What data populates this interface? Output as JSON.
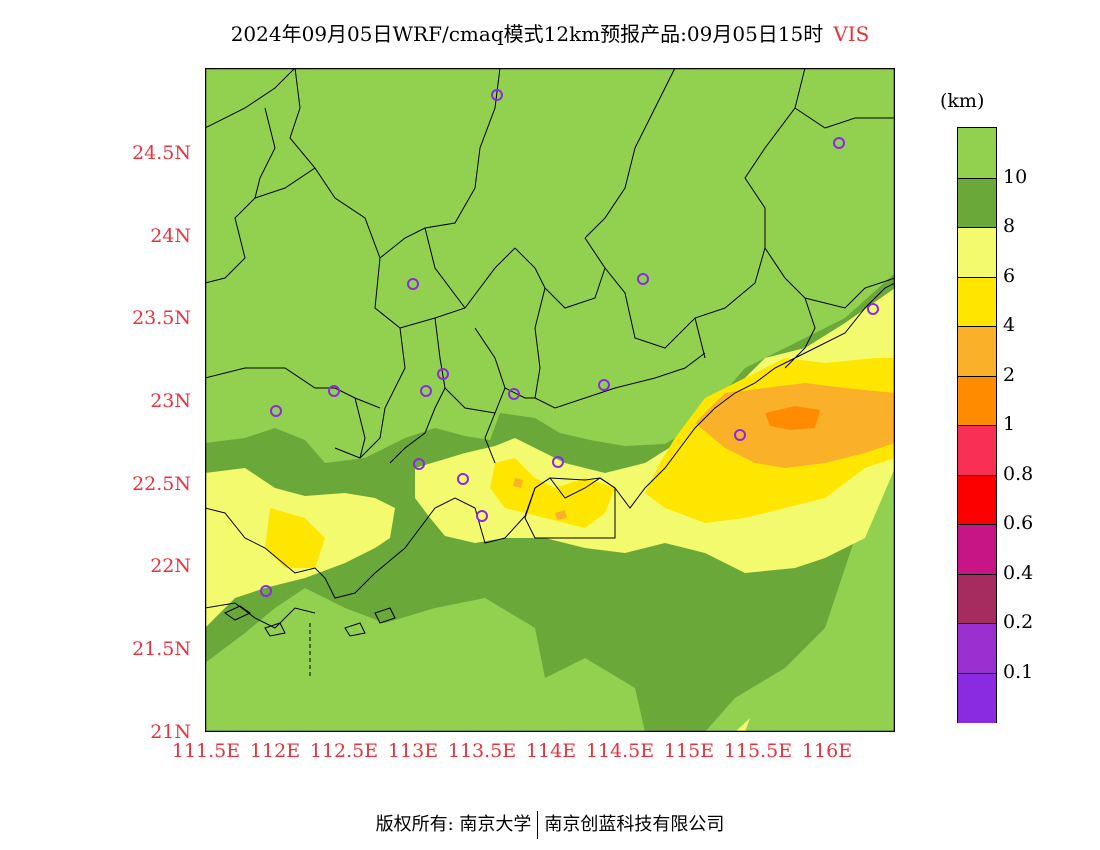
{
  "title": {
    "text": "2024年09月05日WRF/cmaq模式12km预报产品:09月05日15时",
    "variable": "VIS"
  },
  "legend": {
    "unit": "(km)",
    "levels": [
      {
        "label": "10",
        "color": "#92d050"
      },
      {
        "label": "8",
        "color": "#6aa83a"
      },
      {
        "label": "6",
        "color": "#f4fa6e"
      },
      {
        "label": "4",
        "color": "#ffe600"
      },
      {
        "label": "2",
        "color": "#fbb02a"
      },
      {
        "label": "1",
        "color": "#ff8c00"
      },
      {
        "label": "0.8",
        "color": "#fa2f55"
      },
      {
        "label": "0.6",
        "color": "#fc0000"
      },
      {
        "label": "0.4",
        "color": "#c71585"
      },
      {
        "label": "0.2",
        "color": "#a62b5e"
      },
      {
        "label": "0.1",
        "color": "#9b30d0"
      },
      {
        "label": "",
        "color": "#8a2be2"
      }
    ]
  },
  "axes": {
    "lat_labels": [
      "24.5N",
      "24N",
      "23.5N",
      "23N",
      "22.5N",
      "22N",
      "21.5N",
      "21N"
    ],
    "lon_labels": [
      "111.5E",
      "112E",
      "112.5E",
      "113E",
      "113.5E",
      "114E",
      "114.5E",
      "115E",
      "115.5E",
      "116E"
    ]
  },
  "colors": {
    "label": "#e8323c",
    "station": "#8a2be2"
  },
  "footer": {
    "left": "版权所有: 南京大学",
    "right": "南京创蓝科技有限公司"
  }
}
